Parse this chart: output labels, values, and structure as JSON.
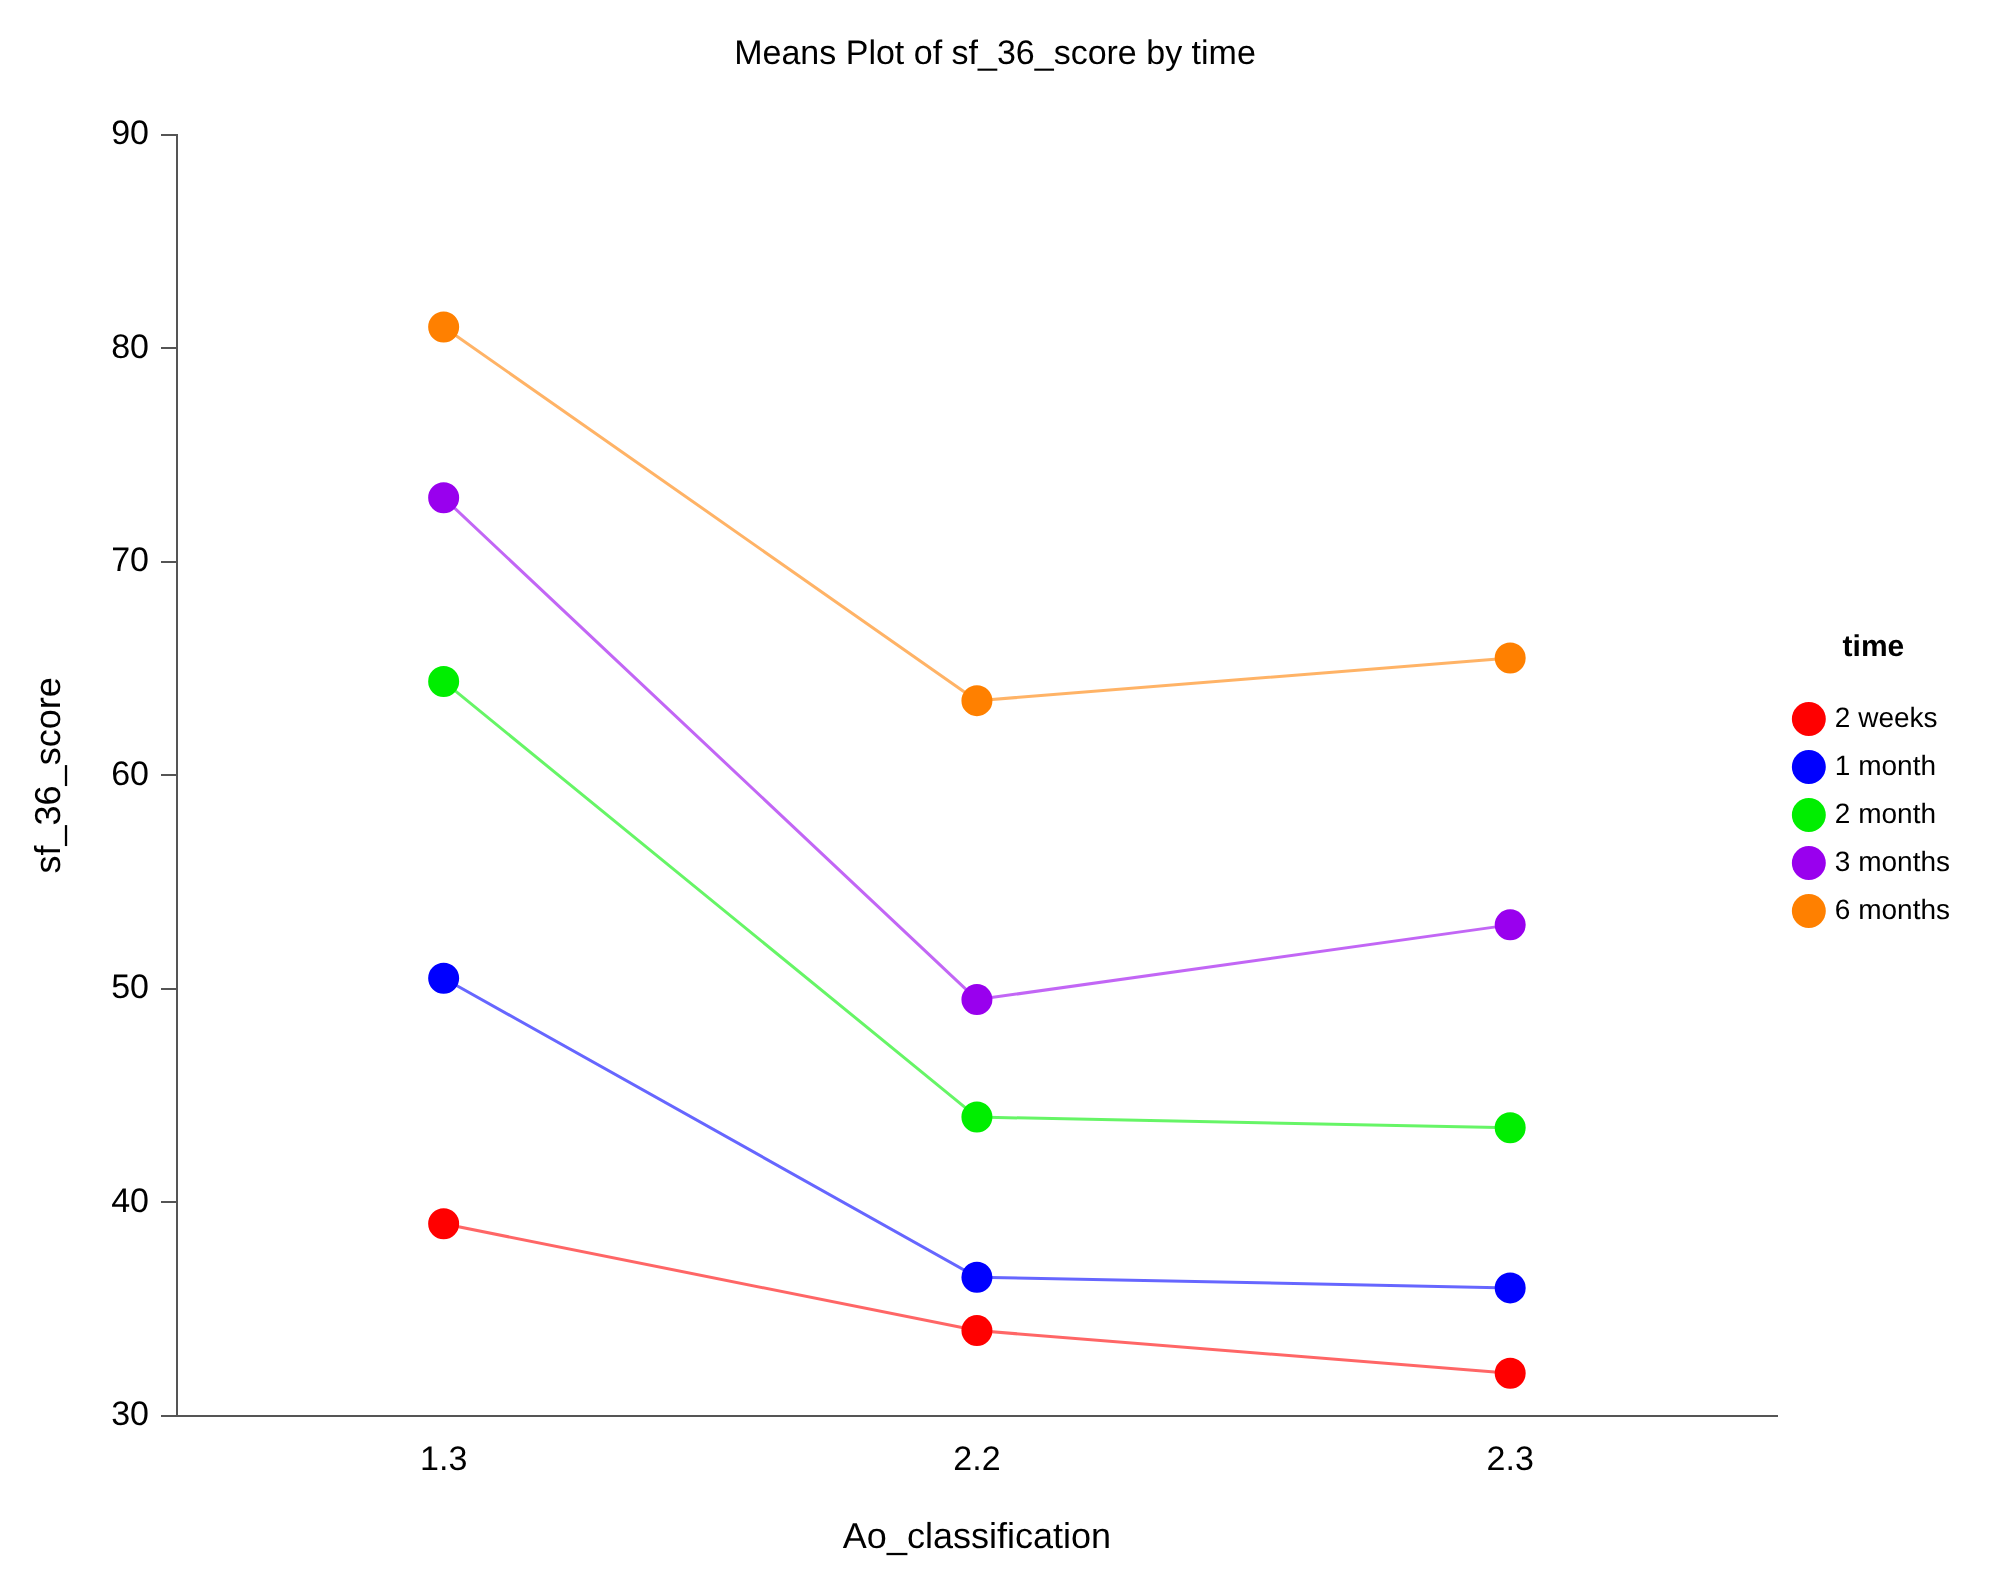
{
  "chart_data": {
    "type": "line",
    "title": "Means Plot of sf_36_score by time",
    "xlabel": "Ao_classification",
    "ylabel": "sf_36_score",
    "legend_title": "time",
    "categories": [
      "1.3",
      "2.2",
      "2.3"
    ],
    "series": [
      {
        "name": "2 weeks",
        "color": "#ff0000",
        "values": [
          39,
          34,
          32
        ]
      },
      {
        "name": "1 month",
        "color": "#0000ff",
        "values": [
          50.5,
          36.5,
          36
        ]
      },
      {
        "name": "2 month",
        "color": "#00ee00",
        "values": [
          64.4,
          44,
          43.5
        ]
      },
      {
        "name": "3 months",
        "color": "#9900ee",
        "values": [
          73,
          49.5,
          53
        ]
      },
      {
        "name": "6 months",
        "color": "#ff8000",
        "values": [
          81,
          63.5,
          65.5
        ]
      }
    ],
    "ylim": [
      30,
      90
    ],
    "yticks": [
      30,
      40,
      50,
      60,
      70,
      80,
      90
    ],
    "grid": false,
    "legend": "right",
    "marker": "circle",
    "line_style": "solid"
  }
}
